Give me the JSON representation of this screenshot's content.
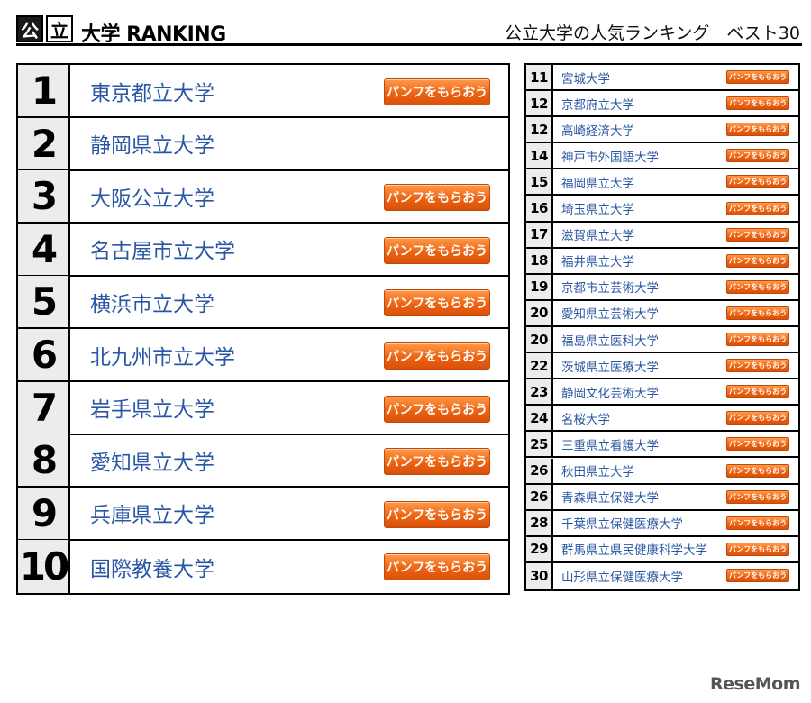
{
  "header": {
    "logo_box1": "公",
    "logo_box2": "立",
    "logo_text": "大学 RANKING",
    "title": "公立大学の人気ランキング　ベスト30"
  },
  "pamphlet_label": "パンフをもらおう",
  "top_ranks": [
    {
      "rank": "1",
      "name": "東京都立大学",
      "has_button": true
    },
    {
      "rank": "2",
      "name": "静岡県立大学",
      "has_button": false
    },
    {
      "rank": "3",
      "name": "大阪公立大学",
      "has_button": true
    },
    {
      "rank": "4",
      "name": "名古屋市立大学",
      "has_button": true
    },
    {
      "rank": "5",
      "name": "横浜市立大学",
      "has_button": true
    },
    {
      "rank": "6",
      "name": "北九州市立大学",
      "has_button": true
    },
    {
      "rank": "7",
      "name": "岩手県立大学",
      "has_button": true
    },
    {
      "rank": "8",
      "name": "愛知県立大学",
      "has_button": true
    },
    {
      "rank": "9",
      "name": "兵庫県立大学",
      "has_button": true
    },
    {
      "rank": "10",
      "name": "国際教養大学",
      "has_button": true
    }
  ],
  "other_ranks": [
    {
      "rank": "11",
      "name": "宮城大学"
    },
    {
      "rank": "12",
      "name": "京都府立大学"
    },
    {
      "rank": "12",
      "name": "高崎経済大学"
    },
    {
      "rank": "14",
      "name": "神戸市外国語大学"
    },
    {
      "rank": "15",
      "name": "福岡県立大学"
    },
    {
      "rank": "16",
      "name": "埼玉県立大学"
    },
    {
      "rank": "17",
      "name": "滋賀県立大学"
    },
    {
      "rank": "18",
      "name": "福井県立大学"
    },
    {
      "rank": "19",
      "name": "京都市立芸術大学"
    },
    {
      "rank": "20",
      "name": "愛知県立芸術大学"
    },
    {
      "rank": "20",
      "name": "福島県立医科大学"
    },
    {
      "rank": "22",
      "name": "茨城県立医療大学"
    },
    {
      "rank": "23",
      "name": "静岡文化芸術大学"
    },
    {
      "rank": "24",
      "name": "名桜大学"
    },
    {
      "rank": "25",
      "name": "三重県立看護大学"
    },
    {
      "rank": "26",
      "name": "秋田県立大学"
    },
    {
      "rank": "26",
      "name": "青森県立保健大学"
    },
    {
      "rank": "28",
      "name": "千葉県立保健医療大学"
    },
    {
      "rank": "29",
      "name": "群馬県立県民健康科学大学"
    },
    {
      "rank": "30",
      "name": "山形県立保健医療大学"
    }
  ],
  "footer": {
    "logo": "ReseMom"
  },
  "colors": {
    "accent": "#ee6412",
    "link": "#2a57a5",
    "rank_bg": "#ececec"
  }
}
